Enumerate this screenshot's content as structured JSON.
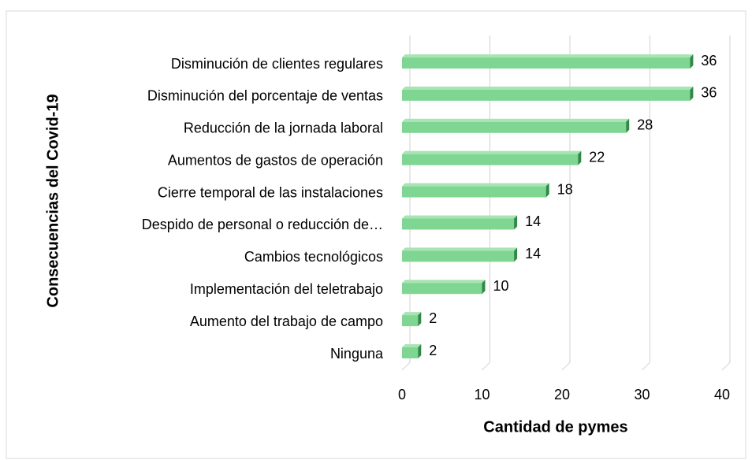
{
  "chart_data": {
    "type": "bar",
    "orientation": "horizontal",
    "x_label": "Cantidad de pymes",
    "y_label": "Consecuencias del Covid-19",
    "categories": [
      "Disminución de clientes regulares",
      "Disminución del porcentaje de ventas",
      "Reducción de la jornada laboral",
      "Aumentos de gastos de operación",
      "Cierre temporal de las instalaciones",
      "Despido de personal o reducción de…",
      "Cambios tecnológicos",
      "Implementación del teletrabajo",
      "Aumento del trabajo de campo",
      "Ninguna"
    ],
    "values": [
      36,
      36,
      28,
      22,
      18,
      14,
      14,
      10,
      2,
      2
    ],
    "color": "#7fd592",
    "xlim": [
      0,
      40
    ],
    "xticks": [
      0,
      10,
      20,
      30,
      40
    ],
    "grid": true
  }
}
